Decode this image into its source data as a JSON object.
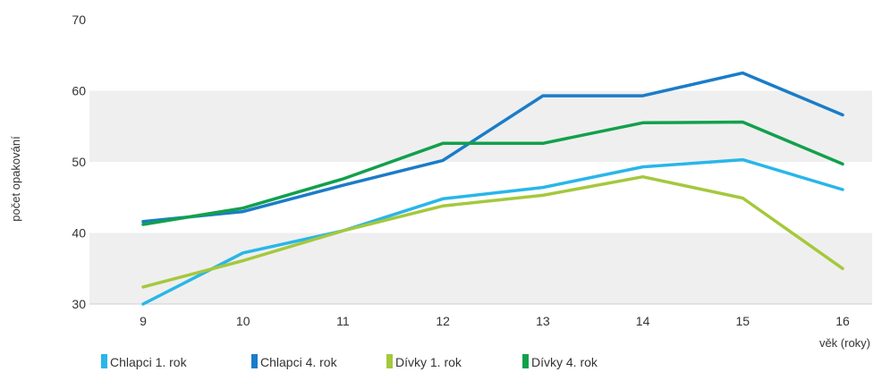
{
  "chart_data": {
    "type": "line",
    "title": "",
    "ylabel": "počet opakování",
    "xlabel": "věk (roky)",
    "x": [
      9,
      10,
      11,
      12,
      13,
      14,
      15,
      16
    ],
    "ylim": [
      30,
      70
    ],
    "yticks": [
      30,
      40,
      50,
      60,
      70
    ],
    "grid": "alternating horizontal bands",
    "legend_position": "bottom",
    "series": [
      {
        "name": "Chlapci 1. rok",
        "color": "#29b6e8",
        "values": [
          30.0,
          37.2,
          40.3,
          44.8,
          46.4,
          49.3,
          50.3,
          46.1
        ]
      },
      {
        "name": "Chlapci 4. rok",
        "color": "#1b7cc8",
        "values": [
          41.6,
          43.0,
          46.7,
          50.2,
          59.3,
          59.3,
          62.5,
          56.6
        ]
      },
      {
        "name": "Dívky 1. rok",
        "color": "#a5c83c",
        "values": [
          32.4,
          36.1,
          40.3,
          43.8,
          45.3,
          47.9,
          44.9,
          35.0
        ]
      },
      {
        "name": "Dívky 4. rok",
        "color": "#12a04c",
        "values": [
          41.2,
          43.5,
          47.6,
          52.6,
          52.6,
          55.5,
          55.6,
          49.7
        ]
      }
    ]
  }
}
